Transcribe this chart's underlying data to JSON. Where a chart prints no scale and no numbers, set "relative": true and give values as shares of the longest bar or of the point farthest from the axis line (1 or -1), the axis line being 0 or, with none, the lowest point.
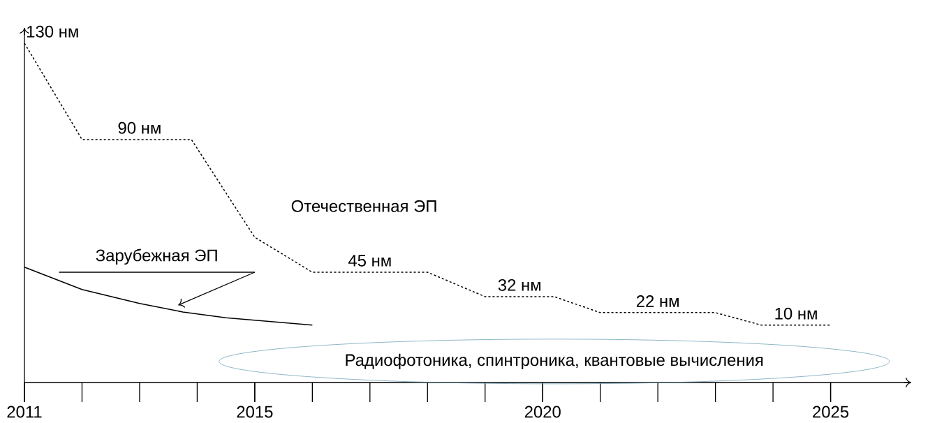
{
  "chart_data": {
    "type": "line",
    "relative": true,
    "xlim": [
      2011,
      2026.4
    ],
    "xticks": [
      2011,
      2015,
      2020,
      2025
    ],
    "series": [
      {
        "name": "Отечественная ЭП",
        "color": "#000000",
        "line_style": "dotted",
        "x": [
          2011,
          2012,
          2013.9,
          2015,
          2016,
          2018,
          2019,
          2020.2,
          2021,
          2023,
          2023.8,
          2025
        ],
        "values": [
          1.0,
          0.716,
          0.716,
          0.428,
          0.325,
          0.325,
          0.253,
          0.253,
          0.206,
          0.206,
          0.169,
          0.169
        ]
      },
      {
        "name": "Зарубежная ЭП",
        "color": "#000000",
        "line_style": "solid",
        "x": [
          2011,
          2012,
          2013,
          2013.75,
          2014.5,
          2016
        ],
        "values": [
          0.34,
          0.274,
          0.233,
          0.208,
          0.191,
          0.169
        ]
      }
    ],
    "annotations": [
      {
        "text": "130 нм",
        "x": 2011,
        "y": 1.0
      },
      {
        "text": "90 нм",
        "x": 2013,
        "y": 0.716
      },
      {
        "text": "45 нм",
        "x": 2017,
        "y": 0.325
      },
      {
        "text": "32 нм",
        "x": 2019.6,
        "y": 0.253
      },
      {
        "text": "22 нм",
        "x": 2022,
        "y": 0.206
      },
      {
        "text": "10 нм",
        "x": 2024.4,
        "y": 0.169
      },
      "Радиофотоника,  спинтроника,  квантовые вычисления"
    ]
  }
}
